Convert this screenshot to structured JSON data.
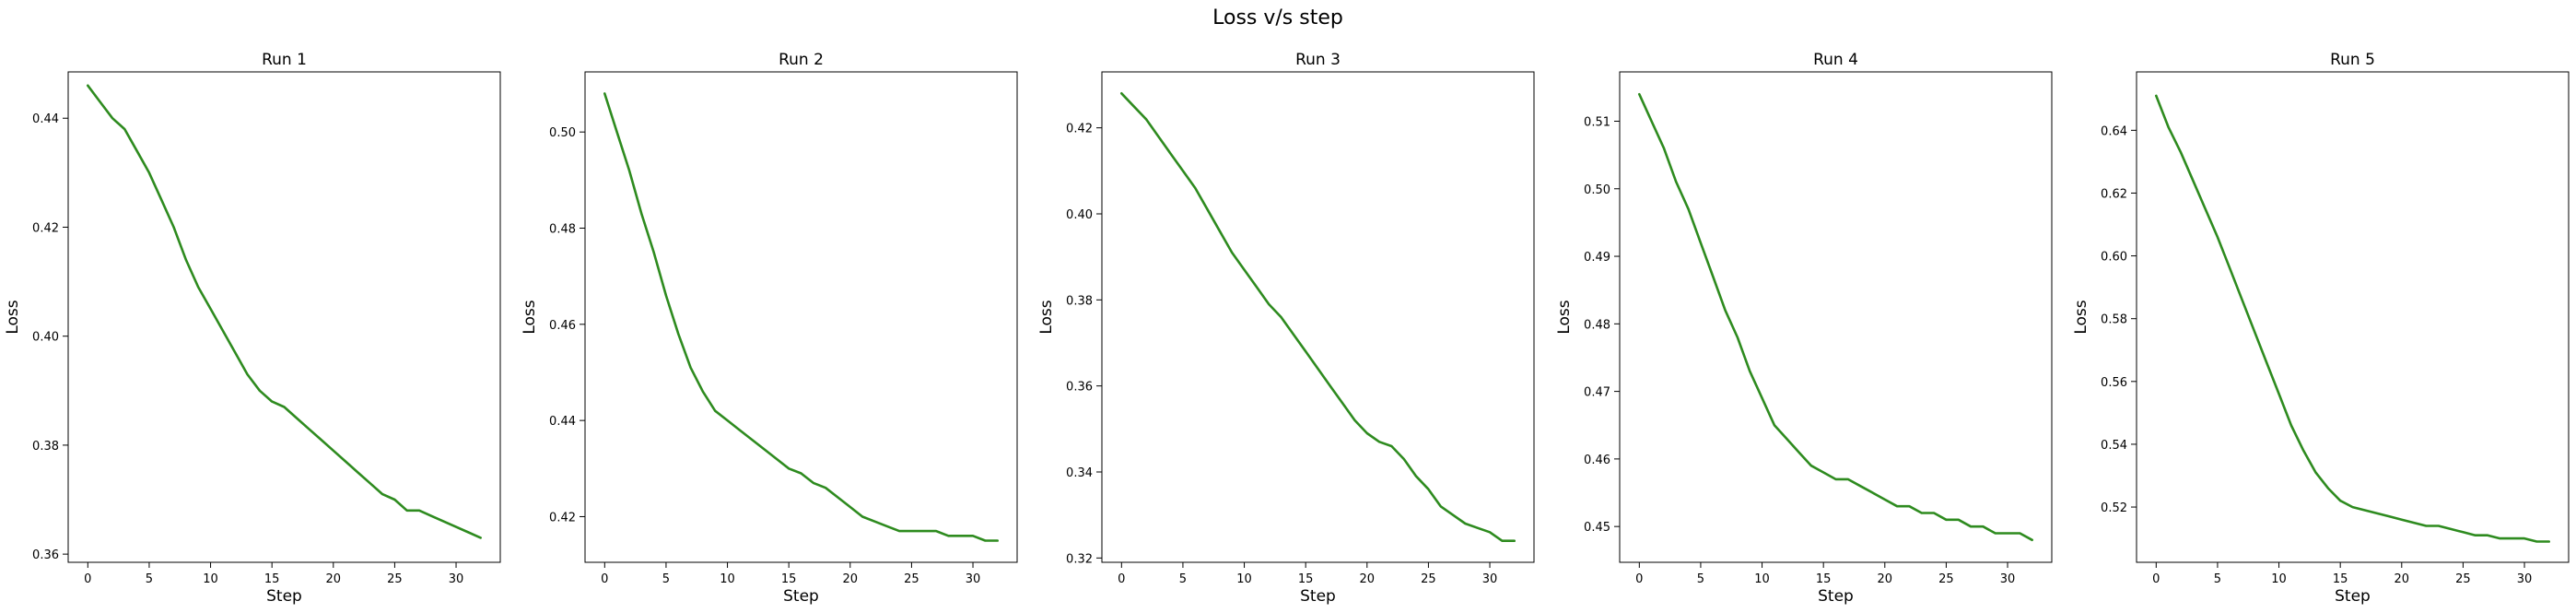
{
  "figure": {
    "title": "Loss v/s step"
  },
  "line_color": "#2e8b1f",
  "chart_data": [
    {
      "type": "line",
      "title": "Run 1",
      "xlabel": "Step",
      "ylabel": "Loss",
      "xlim": [
        -1.6,
        33.6
      ],
      "ylim": [
        0.3585,
        0.4485
      ],
      "xticks": [
        0,
        5,
        10,
        15,
        20,
        25,
        30
      ],
      "yticks": [
        0.36,
        0.38,
        0.4,
        0.42,
        0.44
      ],
      "ytick_labels": [
        "0.36",
        "0.38",
        "0.40",
        "0.42",
        "0.44"
      ],
      "grid": false,
      "x": [
        0,
        1,
        2,
        3,
        4,
        5,
        6,
        7,
        8,
        9,
        10,
        11,
        12,
        13,
        14,
        15,
        16,
        17,
        18,
        19,
        20,
        21,
        22,
        23,
        24,
        25,
        26,
        27,
        28,
        29,
        30,
        31,
        32
      ],
      "y": [
        0.446,
        0.443,
        0.44,
        0.438,
        0.434,
        0.43,
        0.425,
        0.42,
        0.414,
        0.409,
        0.405,
        0.401,
        0.397,
        0.393,
        0.39,
        0.388,
        0.387,
        0.385,
        0.383,
        0.381,
        0.379,
        0.377,
        0.375,
        0.373,
        0.371,
        0.37,
        0.368,
        0.368,
        0.367,
        0.366,
        0.365,
        0.364,
        0.363
      ]
    },
    {
      "type": "line",
      "title": "Run 2",
      "xlabel": "Step",
      "ylabel": "Loss",
      "xlim": [
        -1.6,
        33.6
      ],
      "ylim": [
        0.4105,
        0.5125
      ],
      "xticks": [
        0,
        5,
        10,
        15,
        20,
        25,
        30
      ],
      "yticks": [
        0.42,
        0.44,
        0.46,
        0.48,
        0.5
      ],
      "ytick_labels": [
        "0.42",
        "0.44",
        "0.46",
        "0.48",
        "0.50"
      ],
      "grid": false,
      "x": [
        0,
        1,
        2,
        3,
        4,
        5,
        6,
        7,
        8,
        9,
        10,
        11,
        12,
        13,
        14,
        15,
        16,
        17,
        18,
        19,
        20,
        21,
        22,
        23,
        24,
        25,
        26,
        27,
        28,
        29,
        30,
        31,
        32
      ],
      "y": [
        0.508,
        0.5,
        0.492,
        0.483,
        0.475,
        0.466,
        0.458,
        0.451,
        0.446,
        0.442,
        0.44,
        0.438,
        0.436,
        0.434,
        0.432,
        0.43,
        0.429,
        0.427,
        0.426,
        0.424,
        0.422,
        0.42,
        0.419,
        0.418,
        0.417,
        0.417,
        0.417,
        0.417,
        0.416,
        0.416,
        0.416,
        0.415,
        0.415
      ]
    },
    {
      "type": "line",
      "title": "Run 3",
      "xlabel": "Step",
      "ylabel": "Loss",
      "xlim": [
        -1.6,
        33.6
      ],
      "ylim": [
        0.319,
        0.433
      ],
      "xticks": [
        0,
        5,
        10,
        15,
        20,
        25,
        30
      ],
      "yticks": [
        0.32,
        0.34,
        0.36,
        0.38,
        0.4,
        0.42
      ],
      "ytick_labels": [
        "0.32",
        "0.34",
        "0.36",
        "0.38",
        "0.40",
        "0.42"
      ],
      "grid": false,
      "x": [
        0,
        1,
        2,
        3,
        4,
        5,
        6,
        7,
        8,
        9,
        10,
        11,
        12,
        13,
        14,
        15,
        16,
        17,
        18,
        19,
        20,
        21,
        22,
        23,
        24,
        25,
        26,
        27,
        28,
        29,
        30,
        31,
        32
      ],
      "y": [
        0.428,
        0.425,
        0.422,
        0.418,
        0.414,
        0.41,
        0.406,
        0.401,
        0.396,
        0.391,
        0.387,
        0.383,
        0.379,
        0.376,
        0.372,
        0.368,
        0.364,
        0.36,
        0.356,
        0.352,
        0.349,
        0.347,
        0.346,
        0.343,
        0.339,
        0.336,
        0.332,
        0.33,
        0.328,
        0.327,
        0.326,
        0.324,
        0.324
      ]
    },
    {
      "type": "line",
      "title": "Run 4",
      "xlabel": "Step",
      "ylabel": "Loss",
      "xlim": [
        -1.6,
        33.6
      ],
      "ylim": [
        0.4447,
        0.5173
      ],
      "xticks": [
        0,
        5,
        10,
        15,
        20,
        25,
        30
      ],
      "yticks": [
        0.45,
        0.46,
        0.47,
        0.48,
        0.49,
        0.5,
        0.51
      ],
      "ytick_labels": [
        "0.45",
        "0.46",
        "0.47",
        "0.48",
        "0.49",
        "0.50",
        "0.51"
      ],
      "grid": false,
      "x": [
        0,
        1,
        2,
        3,
        4,
        5,
        6,
        7,
        8,
        9,
        10,
        11,
        12,
        13,
        14,
        15,
        16,
        17,
        18,
        19,
        20,
        21,
        22,
        23,
        24,
        25,
        26,
        27,
        28,
        29,
        30,
        31,
        32
      ],
      "y": [
        0.514,
        0.51,
        0.506,
        0.501,
        0.497,
        0.492,
        0.487,
        0.482,
        0.478,
        0.473,
        0.469,
        0.465,
        0.463,
        0.461,
        0.459,
        0.458,
        0.457,
        0.457,
        0.456,
        0.455,
        0.454,
        0.453,
        0.453,
        0.452,
        0.452,
        0.451,
        0.451,
        0.45,
        0.45,
        0.449,
        0.449,
        0.449,
        0.448
      ]
    },
    {
      "type": "line",
      "title": "Run 5",
      "xlabel": "Step",
      "ylabel": "Loss",
      "xlim": [
        -1.6,
        33.6
      ],
      "ylim": [
        0.5024,
        0.6586
      ],
      "xticks": [
        0,
        5,
        10,
        15,
        20,
        25,
        30
      ],
      "yticks": [
        0.52,
        0.54,
        0.56,
        0.58,
        0.6,
        0.62,
        0.64
      ],
      "ytick_labels": [
        "0.52",
        "0.54",
        "0.56",
        "0.58",
        "0.60",
        "0.62",
        "0.64"
      ],
      "grid": false,
      "x": [
        0,
        1,
        2,
        3,
        4,
        5,
        6,
        7,
        8,
        9,
        10,
        11,
        12,
        13,
        14,
        15,
        16,
        17,
        18,
        19,
        20,
        21,
        22,
        23,
        24,
        25,
        26,
        27,
        28,
        29,
        30,
        31,
        32
      ],
      "y": [
        0.651,
        0.641,
        0.633,
        0.624,
        0.615,
        0.606,
        0.596,
        0.586,
        0.576,
        0.566,
        0.556,
        0.546,
        0.538,
        0.531,
        0.526,
        0.522,
        0.52,
        0.519,
        0.518,
        0.517,
        0.516,
        0.515,
        0.514,
        0.514,
        0.513,
        0.512,
        0.511,
        0.511,
        0.51,
        0.51,
        0.51,
        0.509,
        0.509
      ]
    }
  ]
}
